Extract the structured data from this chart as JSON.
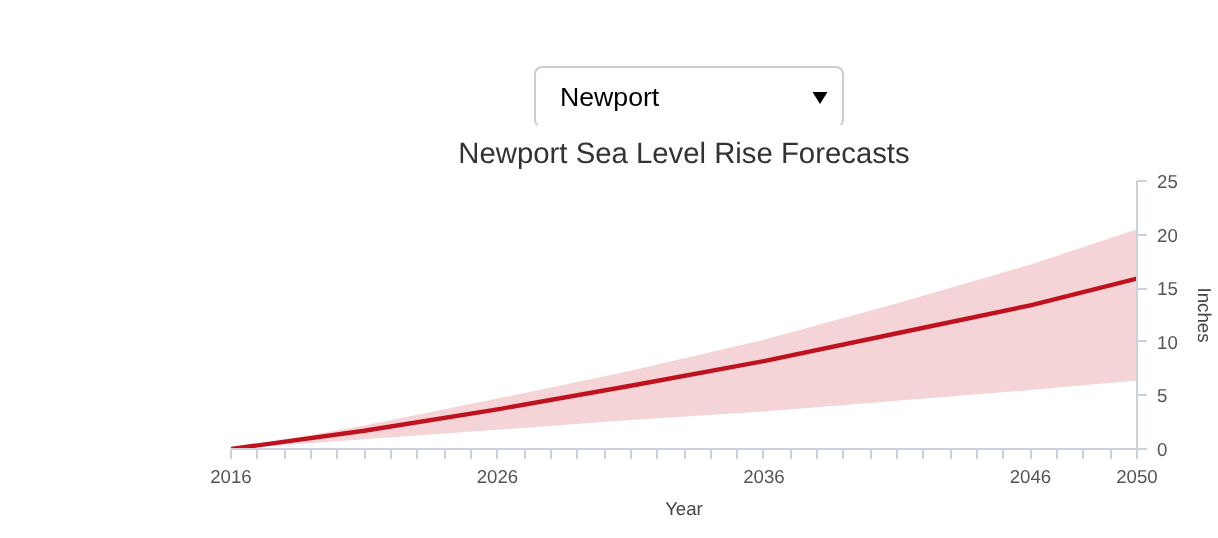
{
  "chart_data": {
    "type": "line",
    "title": "Newport Sea Level Rise Forecasts",
    "xlabel": "Year",
    "ylabel": "Inches",
    "annotations": [
      "Newport"
    ],
    "x": [
      2016,
      2021,
      2026,
      2031,
      2036,
      2041,
      2046,
      2050
    ],
    "series": [
      {
        "color": "#c0111f",
        "values": [
          0,
          1.7,
          3.7,
          5.9,
          8.2,
          10.8,
          13.4,
          15.9
        ],
        "lower": [
          0,
          0.9,
          1.8,
          2.7,
          3.5,
          4.5,
          5.5,
          6.4
        ],
        "upper": [
          0,
          2.2,
          4.7,
          7.3,
          10.2,
          13.6,
          17.2,
          20.5
        ]
      }
    ],
    "xlim": [
      2016,
      2050
    ],
    "ylim": [
      0,
      25
    ],
    "xticks": [
      2016,
      {
        "value": 2017,
        "label": null
      },
      {
        "value": 2018,
        "label": null
      },
      {
        "value": 2019,
        "label": null
      },
      {
        "value": 2020,
        "label": null
      },
      {
        "value": 2021,
        "label": null
      },
      {
        "value": 2022,
        "label": null
      },
      {
        "value": 2023,
        "label": null
      },
      {
        "value": 2024,
        "label": null
      },
      {
        "value": 2025,
        "label": null
      },
      2026,
      {
        "value": 2027,
        "label": null
      },
      {
        "value": 2028,
        "label": null
      },
      {
        "value": 2029,
        "label": null
      },
      {
        "value": 2030,
        "label": null
      },
      {
        "value": 2031,
        "label": null
      },
      {
        "value": 2032,
        "label": null
      },
      {
        "value": 2033,
        "label": null
      },
      {
        "value": 2034,
        "label": null
      },
      {
        "value": 2035,
        "label": null
      },
      2036,
      {
        "value": 2037,
        "label": null
      },
      {
        "value": 2038,
        "label": null
      },
      {
        "value": 2039,
        "label": null
      },
      {
        "value": 2040,
        "label": null
      },
      {
        "value": 2041,
        "label": null
      },
      {
        "value": 2042,
        "label": null
      },
      {
        "value": 2043,
        "label": null
      },
      {
        "value": 2044,
        "label": null
      },
      {
        "value": 2045,
        "label": null
      },
      2046,
      {
        "value": 2047,
        "label": null
      },
      {
        "value": 2048,
        "label": null
      },
      {
        "value": 2049,
        "label": null
      },
      2050
    ],
    "yticks": [
      0,
      5,
      10,
      15,
      20,
      25
    ],
    "grid": false,
    "marker": "none",
    "line_style": "solid"
  }
}
